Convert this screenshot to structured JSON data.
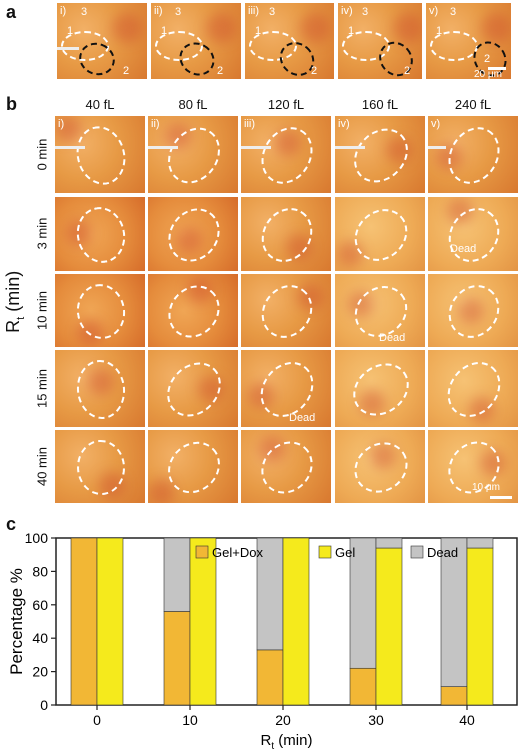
{
  "panel_a": {
    "letter": "a",
    "subpanels": [
      "i)",
      "ii)",
      "iii)",
      "iv)",
      "v)"
    ],
    "labels": [
      "1",
      "2",
      "3"
    ],
    "scale": "20 μm"
  },
  "panel_b": {
    "letter": "b",
    "columns": [
      "40 fL",
      "80 fL",
      "120 fL",
      "160 fL",
      "240 fL"
    ],
    "roman": [
      "i)",
      "ii)",
      "iii)",
      "iv)",
      "v)"
    ],
    "rows": [
      "0 min",
      "3 min",
      "10 min",
      "15 min",
      "40 min"
    ],
    "ylabel": "R",
    "ylabel_sub": "t",
    "ylabel_unit": " (min)",
    "dead_label": "Dead",
    "scale": "10 μm"
  },
  "panel_c": {
    "letter": "c"
  },
  "chart_data": {
    "type": "bar",
    "categories": [
      "0",
      "10",
      "20",
      "30",
      "40"
    ],
    "series": [
      {
        "name": "Gel+Dox",
        "values": [
          100,
          56,
          33,
          22,
          11
        ],
        "color": "#f2b735"
      },
      {
        "name": "Gel",
        "values": [
          100,
          100,
          100,
          94,
          94
        ],
        "color": "#f5ea1c"
      },
      {
        "name": "Dead",
        "values": [
          0,
          44,
          67,
          78,
          89
        ],
        "color": "#c4c4c4"
      }
    ],
    "dead_on_gel": [
      0,
      0,
      0,
      6,
      6
    ],
    "xlabel": "R",
    "xlabel_sub": "t",
    "xlabel_unit": " (min)",
    "ylabel": "Percentage %",
    "ylim": [
      0,
      100
    ],
    "yticks": [
      0,
      20,
      40,
      60,
      80,
      100
    ],
    "legend": "top"
  }
}
